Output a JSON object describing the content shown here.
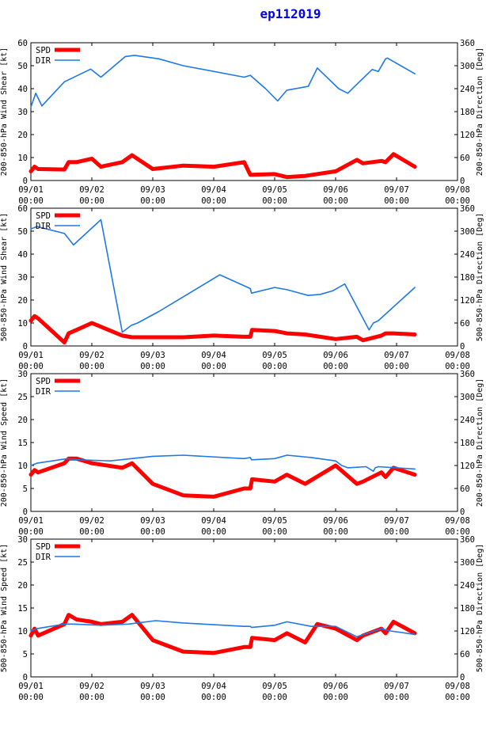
{
  "title": "ep112019",
  "chart_data": [
    {
      "type": "line",
      "ylabel_left": "200-850-hPa Wind Shear [kt]",
      "ylabel_right": "200-850-hPa Direction [Deg]",
      "ylim_left": [
        0,
        60
      ],
      "yticks_left": [
        0,
        10,
        20,
        30,
        40,
        50,
        60
      ],
      "ylim_right": [
        0,
        360
      ],
      "yticks_right": [
        0,
        60,
        120,
        180,
        240,
        300,
        360
      ],
      "xlim": [
        0,
        7
      ],
      "xtick_labels": [
        [
          "09/01",
          "00:00"
        ],
        [
          "09/02",
          "00:00"
        ],
        [
          "09/03",
          "00:00"
        ],
        [
          "09/04",
          "00:00"
        ],
        [
          "09/05",
          "00:00"
        ],
        [
          "09/06",
          "00:00"
        ],
        [
          "09/07",
          "00:00"
        ],
        [
          "09/08",
          "00:00"
        ]
      ],
      "legend": "top-left",
      "series": [
        {
          "name": "SPD",
          "color": "#ff0000",
          "axis": "left",
          "x": [
            0,
            0.06,
            0.12,
            0.55,
            0.62,
            0.75,
            1.0,
            1.15,
            1.5,
            1.66,
            2.0,
            2.5,
            3.0,
            3.5,
            3.6,
            3.63,
            4.0,
            4.2,
            4.5,
            5.0,
            5.35,
            5.45,
            5.75,
            5.82,
            5.95,
            6.3
          ],
          "y": [
            4,
            6,
            5,
            4.8,
            8,
            8,
            9.5,
            6,
            8,
            11,
            5,
            6.5,
            6,
            8,
            2.5,
            2.5,
            2.8,
            1.5,
            2,
            4,
            9,
            7.5,
            8.5,
            8,
            11.5,
            6
          ]
        },
        {
          "name": "DIR",
          "color": "#1e78e6",
          "axis": "right",
          "x": [
            0,
            0.08,
            0.18,
            0.55,
            0.98,
            1.15,
            1.55,
            1.7,
            2.1,
            2.5,
            3.5,
            3.6,
            3.85,
            4.05,
            4.2,
            4.55,
            4.7,
            5.05,
            5.2,
            5.3,
            5.6,
            5.7,
            5.82,
            5.85,
            6.3
          ],
          "y": [
            192,
            228,
            195,
            258,
            291,
            270,
            324,
            327,
            318,
            300,
            270,
            275,
            240,
            208,
            236,
            246,
            294,
            240,
            228,
            244,
            290,
            285,
            318,
            320,
            279
          ]
        }
      ]
    },
    {
      "type": "line",
      "ylabel_left": "500-850-hPa Wind Shear [kt]",
      "ylabel_right": "500-850-hPa Direction [Deg]",
      "ylim_left": [
        0,
        60
      ],
      "yticks_left": [
        0,
        10,
        20,
        30,
        40,
        50,
        60
      ],
      "ylim_right": [
        0,
        360
      ],
      "yticks_right": [
        0,
        60,
        120,
        180,
        240,
        300,
        360
      ],
      "xlim": [
        0,
        7
      ],
      "xtick_labels": [
        [
          "09/01",
          "00:00"
        ],
        [
          "09/02",
          "00:00"
        ],
        [
          "09/03",
          "00:00"
        ],
        [
          "09/04",
          "00:00"
        ],
        [
          "09/05",
          "00:00"
        ],
        [
          "09/06",
          "00:00"
        ],
        [
          "09/07",
          "00:00"
        ],
        [
          "09/08",
          "00:00"
        ]
      ],
      "legend": "top-left",
      "series": [
        {
          "name": "SPD",
          "color": "#ff0000",
          "axis": "left",
          "x": [
            0,
            0.06,
            0.12,
            0.55,
            0.62,
            0.75,
            1.0,
            1.5,
            1.66,
            2.0,
            2.5,
            3.0,
            3.5,
            3.6,
            3.63,
            4.0,
            4.2,
            4.5,
            5.0,
            5.35,
            5.45,
            5.75,
            5.82,
            5.95,
            6.3
          ],
          "y": [
            11,
            13,
            12,
            1.5,
            5.5,
            7,
            10,
            4.5,
            3.8,
            3.8,
            3.8,
            4.5,
            4,
            4,
            7,
            6.5,
            5.5,
            5,
            3,
            4,
            2.5,
            4.5,
            5.5,
            5.5,
            5
          ]
        },
        {
          "name": "DIR",
          "color": "#1e78e6",
          "axis": "right",
          "x": [
            0,
            0.1,
            0.55,
            0.7,
            1.15,
            1.5,
            1.65,
            1.75,
            2.1,
            3.1,
            3.6,
            3.62,
            4.0,
            4.2,
            4.55,
            4.75,
            4.95,
            5.15,
            5.55,
            5.62,
            5.7,
            6.3
          ],
          "y": [
            306,
            312,
            294,
            264,
            330,
            36,
            54,
            60,
            90,
            186,
            150,
            138,
            153,
            147,
            132,
            135,
            144,
            162,
            42,
            60,
            66,
            153
          ]
        }
      ]
    },
    {
      "type": "line",
      "ylabel_left": "200-850-hPa Wind Speed [kt]",
      "ylabel_right": "200-850-hPa Direction [Deg]",
      "ylim_left": [
        0,
        30
      ],
      "yticks_left": [
        0,
        5,
        10,
        15,
        20,
        25,
        30
      ],
      "ylim_right": [
        0,
        360
      ],
      "yticks_right": [
        0,
        60,
        120,
        180,
        240,
        300,
        360
      ],
      "xlim": [
        0,
        7
      ],
      "xtick_labels": [
        [
          "09/01",
          "00:00"
        ],
        [
          "09/02",
          "00:00"
        ],
        [
          "09/03",
          "00:00"
        ],
        [
          "09/04",
          "00:00"
        ],
        [
          "09/05",
          "00:00"
        ],
        [
          "09/06",
          "00:00"
        ],
        [
          "09/07",
          "00:00"
        ],
        [
          "09/08",
          "00:00"
        ]
      ],
      "legend": "top-left",
      "series": [
        {
          "name": "SPD",
          "color": "#ff0000",
          "axis": "left",
          "x": [
            0,
            0.06,
            0.12,
            0.55,
            0.62,
            0.75,
            1.0,
            1.5,
            1.66,
            2.0,
            2.5,
            3.0,
            3.5,
            3.6,
            3.63,
            4.0,
            4.2,
            4.5,
            5.0,
            5.35,
            5.45,
            5.75,
            5.82,
            5.95,
            6.3
          ],
          "y": [
            8,
            9,
            8.5,
            10.5,
            11.5,
            11.5,
            10.5,
            9.5,
            10.5,
            6,
            3.5,
            3.2,
            5,
            5,
            7,
            6.5,
            8,
            6,
            10,
            6,
            6.5,
            8.5,
            7.5,
            9.5,
            8
          ]
        },
        {
          "name": "DIR",
          "color": "#1e78e6",
          "axis": "right",
          "x": [
            0,
            0.1,
            0.6,
            0.8,
            1.3,
            2.0,
            2.5,
            3.5,
            3.6,
            3.62,
            4.0,
            4.2,
            4.6,
            5.0,
            5.1,
            5.2,
            5.5,
            5.62,
            5.65,
            5.7,
            6.3
          ],
          "y": [
            120,
            126,
            138,
            135,
            132,
            144,
            147,
            138,
            141,
            135,
            138,
            147,
            141,
            132,
            120,
            114,
            117,
            105,
            114,
            117,
            111
          ]
        }
      ]
    },
    {
      "type": "line",
      "ylabel_left": "500-850-hPa Wind Speed [kt]",
      "ylabel_right": "500-850-hPa Direction [Deg]",
      "ylim_left": [
        0,
        30
      ],
      "yticks_left": [
        0,
        5,
        10,
        15,
        20,
        25,
        30
      ],
      "ylim_right": [
        0,
        360
      ],
      "yticks_right": [
        0,
        60,
        120,
        180,
        240,
        300,
        360
      ],
      "xlim": [
        0,
        7
      ],
      "xtick_labels": [
        [
          "09/01",
          "00:00"
        ],
        [
          "09/02",
          "00:00"
        ],
        [
          "09/03",
          "00:00"
        ],
        [
          "09/04",
          "00:00"
        ],
        [
          "09/05",
          "00:00"
        ],
        [
          "09/06",
          "00:00"
        ],
        [
          "09/07",
          "00:00"
        ],
        [
          "09/08",
          "00:00"
        ]
      ],
      "legend": "top-left",
      "series": [
        {
          "name": "SPD",
          "color": "#ff0000",
          "axis": "left",
          "x": [
            0,
            0.06,
            0.12,
            0.55,
            0.62,
            0.75,
            1.0,
            1.15,
            1.5,
            1.66,
            2.0,
            2.5,
            3.0,
            3.5,
            3.6,
            3.63,
            4.0,
            4.2,
            4.5,
            4.7,
            5.0,
            5.35,
            5.45,
            5.75,
            5.82,
            5.95,
            6.3
          ],
          "y": [
            9,
            10.5,
            9,
            11.5,
            13.5,
            12.5,
            12,
            11.5,
            12,
            13.5,
            8,
            5.5,
            5.2,
            6.5,
            6.5,
            8.5,
            8,
            9.5,
            7.5,
            11.5,
            10.5,
            8,
            9,
            10.5,
            9.5,
            12,
            9.5
          ]
        },
        {
          "name": "DIR",
          "color": "#1e78e6",
          "axis": "right",
          "x": [
            0,
            0.1,
            0.55,
            0.7,
            1.15,
            1.6,
            2.05,
            2.5,
            3.5,
            3.6,
            3.62,
            4.0,
            4.2,
            4.6,
            5.0,
            5.35,
            5.75,
            5.9,
            6.3
          ],
          "y": [
            120,
            126,
            138,
            138,
            135,
            138,
            147,
            141,
            132,
            132,
            129,
            135,
            144,
            132,
            132,
            105,
            126,
            120,
            111
          ]
        }
      ]
    }
  ]
}
